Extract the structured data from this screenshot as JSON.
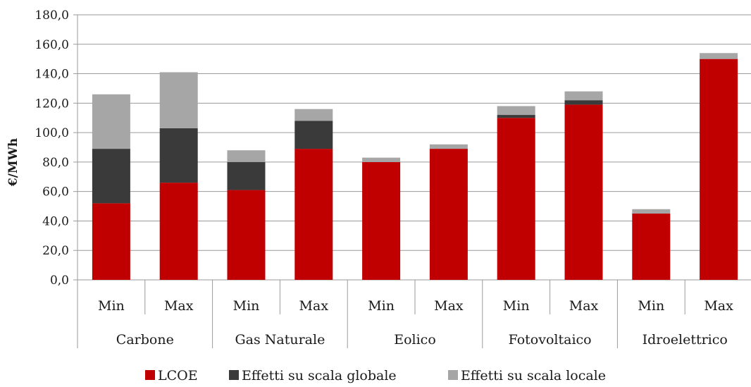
{
  "chart_data": {
    "type": "bar",
    "stacked": true,
    "ylabel": "€/MWh",
    "ylim": [
      0,
      180
    ],
    "yticks": [
      "0,0",
      "20,0",
      "40,0",
      "60,0",
      "80,0",
      "100,0",
      "120,0",
      "140,0",
      "160,0",
      "180,0"
    ],
    "grid": true,
    "groups": [
      "Carbone",
      "Gas Naturale",
      "Eolico",
      "Fotovoltaico",
      "Idroelettrico"
    ],
    "categories": [
      "Min",
      "Max",
      "Min",
      "Max",
      "Min",
      "Max",
      "Min",
      "Max",
      "Min",
      "Max"
    ],
    "series": [
      {
        "name": "LCOE",
        "color": "#c00000",
        "values": [
          52,
          66,
          61,
          89,
          80,
          89,
          110,
          119,
          45,
          150
        ]
      },
      {
        "name": "Effetti su scala globale",
        "color": "#3a3a3a",
        "values": [
          37,
          37,
          19,
          19,
          0,
          0,
          2,
          3,
          0,
          0
        ]
      },
      {
        "name": "Effetti su scala locale",
        "color": "#a6a6a6",
        "values": [
          37,
          38,
          8,
          8,
          3,
          3,
          6,
          6,
          3,
          4
        ]
      }
    ],
    "legend": "bottom"
  }
}
